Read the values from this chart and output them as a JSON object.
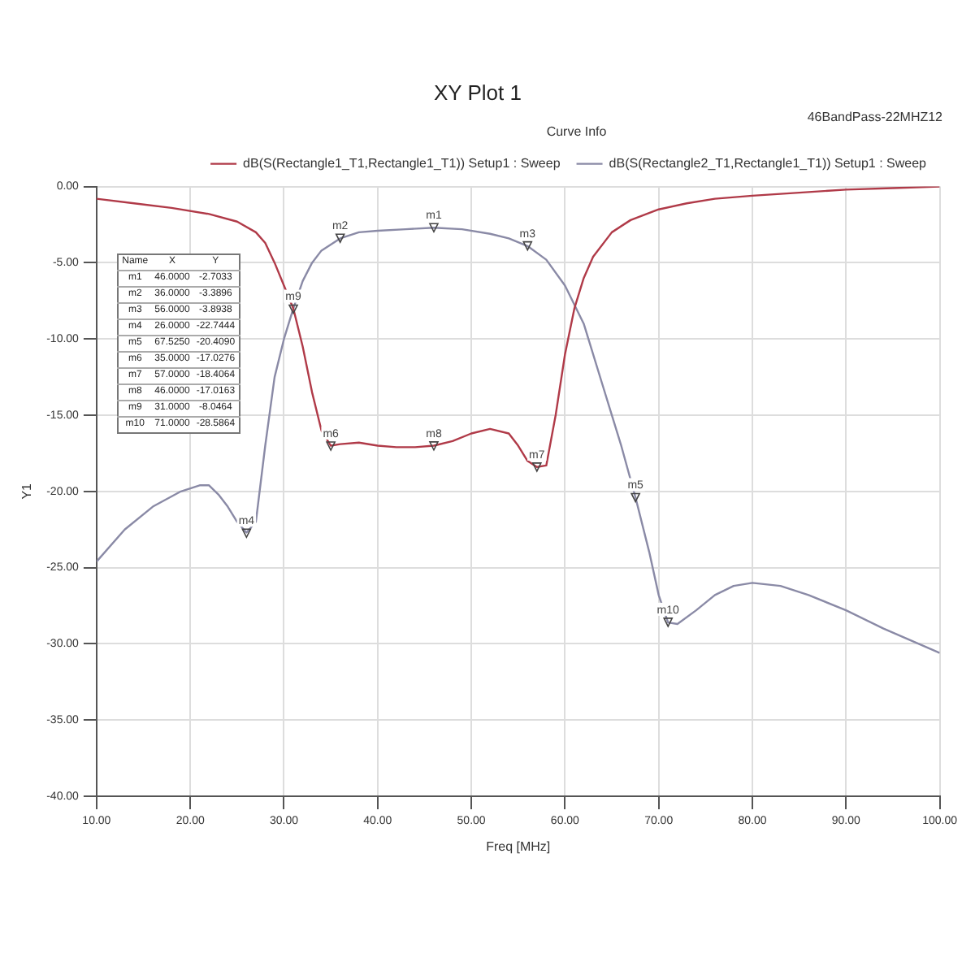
{
  "chart_data": {
    "type": "line",
    "title": "XY Plot 1",
    "subtitle": "46BandPass-22MHZ12",
    "xlabel": "Freq [MHz]",
    "ylabel": "Y1",
    "legend_title": "Curve Info",
    "legend": "top right",
    "grid": true,
    "marker": "none",
    "line_style": "solid",
    "xlim": [
      10,
      100
    ],
    "ylim": [
      -40,
      0
    ],
    "xticks": [
      {
        "value": 10,
        "label": "10.00"
      },
      {
        "value": 20,
        "label": "20.00"
      },
      {
        "value": 30,
        "label": "30.00"
      },
      {
        "value": 40,
        "label": "40.00"
      },
      {
        "value": 50,
        "label": "50.00"
      },
      {
        "value": 60,
        "label": "60.00"
      },
      {
        "value": 70,
        "label": "70.00"
      },
      {
        "value": 80,
        "label": "80.00"
      },
      {
        "value": 90,
        "label": "90.00"
      },
      {
        "value": 100,
        "label": "100.00"
      }
    ],
    "yticks": [
      {
        "value": 0,
        "label": "0.00"
      },
      {
        "value": -5,
        "label": "-5.00"
      },
      {
        "value": -10,
        "label": "-10.00"
      },
      {
        "value": -15,
        "label": "-15.00"
      },
      {
        "value": -20,
        "label": "-20.00"
      },
      {
        "value": -25,
        "label": "-25.00"
      },
      {
        "value": -30,
        "label": "-30.00"
      },
      {
        "value": -35,
        "label": "-35.00"
      },
      {
        "value": -40,
        "label": "-40.00"
      }
    ],
    "series": [
      {
        "name": "dB(S(Rectangle1_T1,Rectangle1_T1)) Setup1 : Sweep",
        "color": "#b03a48",
        "x": [
          10,
          14,
          18,
          22,
          25,
          27,
          28,
          29,
          30,
          31,
          32,
          33,
          34,
          35,
          36,
          38,
          40,
          42,
          44,
          46,
          48,
          50,
          52,
          54,
          55,
          56,
          57,
          58,
          59,
          60,
          61,
          62,
          63,
          65,
          67,
          70,
          73,
          76,
          80,
          85,
          90,
          95,
          100
        ],
        "values": [
          -0.8,
          -1.1,
          -1.4,
          -1.8,
          -2.3,
          -3,
          -3.7,
          -5,
          -6.5,
          -8,
          -10.5,
          -13.5,
          -16,
          -17,
          -16.9,
          -16.8,
          -17,
          -17.1,
          -17.1,
          -17,
          -16.7,
          -16.2,
          -15.9,
          -16.2,
          -17,
          -18,
          -18.4,
          -18.3,
          -15,
          -11,
          -8,
          -6,
          -4.6,
          -3,
          -2.2,
          -1.5,
          -1.1,
          -0.8,
          -0.6,
          -0.4,
          -0.2,
          -0.1,
          0
        ]
      },
      {
        "name": "dB(S(Rectangle2_T1,Rectangle1_T1)) Setup1 : Sweep",
        "color": "#8a8aa6",
        "x": [
          10,
          13,
          16,
          19,
          21,
          22,
          23,
          24,
          25,
          26,
          27,
          28,
          29,
          30,
          31,
          32,
          33,
          34,
          36,
          38,
          40,
          43,
          46,
          49,
          52,
          54,
          56,
          58,
          60,
          62,
          64,
          66,
          67.525,
          69,
          70,
          71,
          72,
          74,
          76,
          78,
          80,
          83,
          86,
          90,
          94,
          97,
          100
        ],
        "values": [
          -24.6,
          -22.5,
          -21,
          -20,
          -19.6,
          -19.6,
          -20.2,
          -21,
          -22,
          -22.7,
          -22,
          -17,
          -12.5,
          -10,
          -8,
          -6.2,
          -5,
          -4.2,
          -3.4,
          -3,
          -2.9,
          -2.8,
          -2.7,
          -2.8,
          -3.1,
          -3.4,
          -3.9,
          -4.8,
          -6.5,
          -9,
          -13,
          -17,
          -20.4,
          -24,
          -26.8,
          -28.6,
          -28.7,
          -27.8,
          -26.8,
          -26.2,
          -26,
          -26.2,
          -26.8,
          -27.8,
          -29,
          -29.8,
          -30.6
        ]
      }
    ],
    "annotations": [
      {
        "text": "m1",
        "x": 46,
        "y": -2.7033
      },
      {
        "text": "m2",
        "x": 36,
        "y": -3.3896
      },
      {
        "text": "m3",
        "x": 56,
        "y": -3.8938
      },
      {
        "text": "m4",
        "x": 26,
        "y": -22.7444
      },
      {
        "text": "m5",
        "x": 67.525,
        "y": -20.409
      },
      {
        "text": "m6",
        "x": 35,
        "y": -17.0276
      },
      {
        "text": "m7",
        "x": 57,
        "y": -18.4064
      },
      {
        "text": "m8",
        "x": 46,
        "y": -17.0163
      },
      {
        "text": "m9",
        "x": 31,
        "y": -8.0464
      },
      {
        "text": "m10",
        "x": 71,
        "y": -28.5864
      },
      "Name X Y",
      "m1 46.0000 -2.7033",
      "m2 36.0000 -3.3896",
      "m3 56.0000 -3.8938",
      "m4 26.0000 -22.7444",
      "m5 67.5250 -20.4090",
      "m6 35.0000 -17.0276",
      "m7 57.0000 -18.4064",
      "m8 46.0000 -17.0163",
      "m9 31.0000 -8.0464",
      "m10 71.0000 -28.5864"
    ]
  }
}
